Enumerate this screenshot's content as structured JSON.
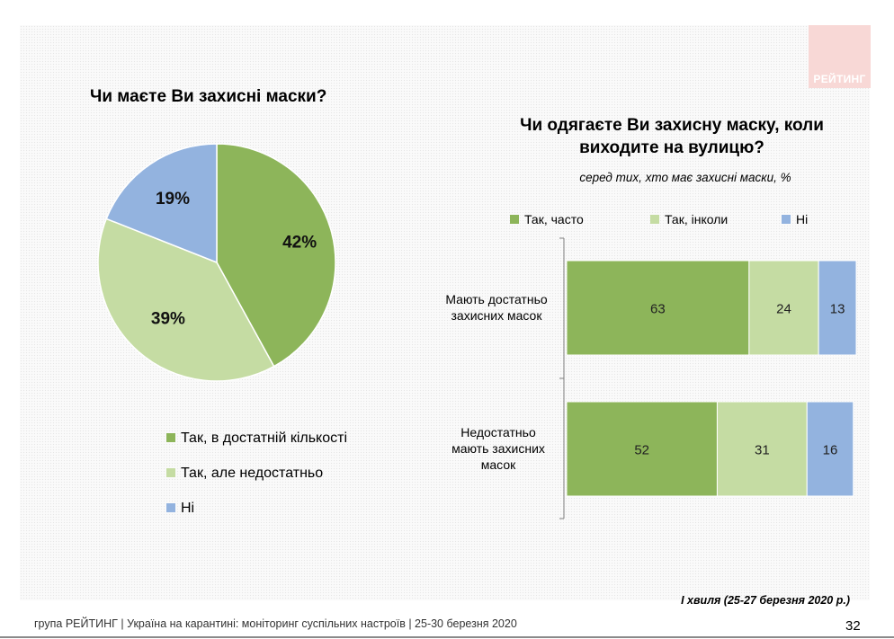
{
  "brand": {
    "logo_text": "РЕЙТИНГ",
    "logo_bg": "#f8d8d6"
  },
  "colors": {
    "dark_green": "#8db55a",
    "light_green": "#c5dca3",
    "blue": "#93b3df"
  },
  "chart_data": [
    {
      "type": "pie",
      "title": "Чи маєте Ви захисні маски?",
      "labels": [
        "Так, в достатній кількості",
        "Так, але недостатньо",
        "Ні"
      ],
      "values": [
        42,
        39,
        19
      ],
      "value_labels": [
        "42%",
        "39%",
        "19%"
      ],
      "legend_position": "bottom"
    },
    {
      "type": "bar",
      "orientation": "horizontal",
      "stacked": true,
      "title": "Чи одягаєте Ви захисну маску, коли виходите на вулицю?",
      "subtitle": "серед тих, хто має захисні маски, %",
      "categories": [
        "Мають достатньо захисних масок",
        "Недостатньо мають захисних масок"
      ],
      "series": [
        {
          "name": "Так, часто",
          "values": [
            63,
            52
          ]
        },
        {
          "name": "Так, інколи",
          "values": [
            24,
            31
          ]
        },
        {
          "name": "Ні",
          "values": [
            13,
            16
          ]
        }
      ],
      "legend_position": "top",
      "xlim": [
        0,
        100
      ]
    }
  ],
  "source_note": "І хвиля (25-27 березня 2020 р.)",
  "footer": {
    "text": "група РЕЙТИНГ  |  Україна на карантині: моніторинг суспільних настроїв  |  25-30 березня 2020",
    "page_number": "32"
  }
}
